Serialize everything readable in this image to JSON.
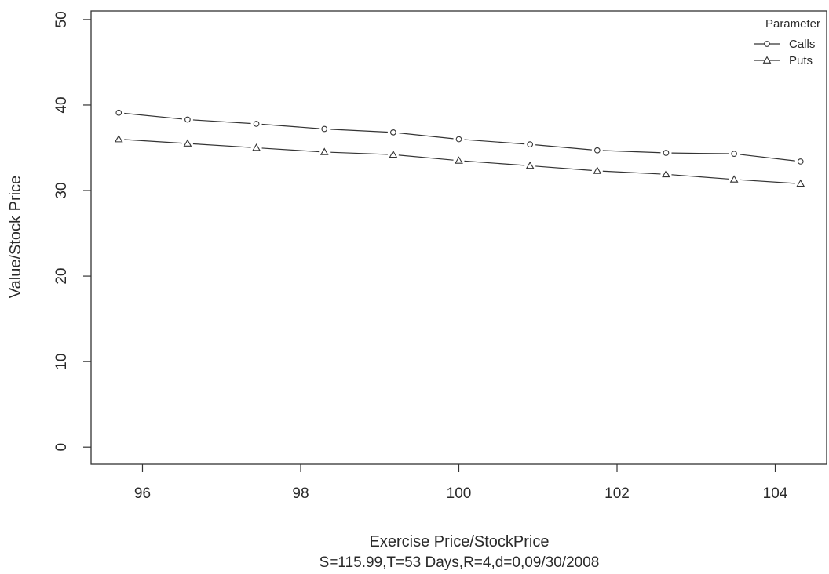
{
  "chart_data": {
    "type": "line",
    "title": "",
    "xlabel": "Exercise Price/StockPrice",
    "subtitle": "S=115.99,T=53 Days,R=4,d=0,09/30/2008",
    "ylabel": "Value/Stock Price",
    "xlim": [
      95.35,
      104.65
    ],
    "ylim": [
      -2,
      51
    ],
    "x_ticks": [
      96,
      98,
      100,
      102,
      104
    ],
    "y_ticks": [
      0,
      10,
      20,
      30,
      40,
      50
    ],
    "grid": false,
    "legend": {
      "title": "Parameter",
      "position": "top-right"
    },
    "x": [
      95.7,
      96.57,
      97.44,
      98.3,
      99.17,
      100.0,
      100.9,
      101.75,
      102.62,
      103.48,
      104.32
    ],
    "series": [
      {
        "name": "Calls",
        "marker": "circle",
        "values": [
          39.1,
          38.3,
          37.8,
          37.2,
          36.8,
          36.0,
          35.4,
          34.7,
          34.4,
          34.3,
          33.4
        ]
      },
      {
        "name": "Puts",
        "marker": "triangle",
        "values": [
          36.0,
          35.5,
          35.0,
          34.5,
          34.2,
          33.5,
          32.9,
          32.3,
          31.9,
          31.3,
          30.8
        ]
      }
    ]
  }
}
